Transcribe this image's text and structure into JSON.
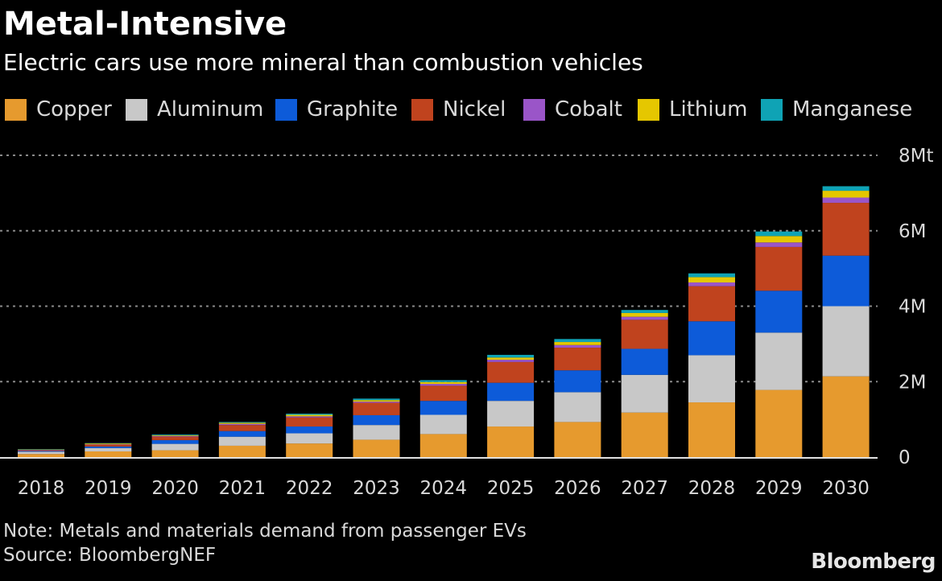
{
  "title": "Metal-Intensive",
  "subtitle": "Electric cars use more mineral than combustion vehicles",
  "note": "Note: Metals and materials demand from passenger EVs",
  "source": "Source: BloombergNEF",
  "brand": "Bloomberg",
  "chart_data": {
    "type": "bar",
    "stacked": true,
    "title": "Metal-Intensive",
    "subtitle": "Electric cars use more mineral than combustion vehicles",
    "xlabel": "",
    "ylabel": "",
    "ylim": [
      0,
      8
    ],
    "y_unit": "million tonnes",
    "y_ticks": [
      {
        "value": 0,
        "label": "0"
      },
      {
        "value": 2,
        "label": "2M"
      },
      {
        "value": 4,
        "label": "4M"
      },
      {
        "value": 6,
        "label": "6M"
      },
      {
        "value": 8,
        "label": "8Mt"
      }
    ],
    "grid": true,
    "legend_position": "top",
    "categories": [
      "2018",
      "2019",
      "2020",
      "2021",
      "2022",
      "2023",
      "2024",
      "2025",
      "2026",
      "2027",
      "2028",
      "2029",
      "2030"
    ],
    "series": [
      {
        "name": "Copper",
        "color": "#E69A2E",
        "values": [
          0.08,
          0.15,
          0.18,
          0.3,
          0.36,
          0.46,
          0.61,
          0.81,
          0.93,
          1.18,
          1.45,
          1.78,
          2.14
        ]
      },
      {
        "name": "Aluminum",
        "color": "#C8C8C8",
        "values": [
          0.06,
          0.09,
          0.17,
          0.24,
          0.27,
          0.39,
          0.51,
          0.68,
          0.79,
          1.0,
          1.25,
          1.52,
          1.86
        ]
      },
      {
        "name": "Graphite",
        "color": "#0D5BD9",
        "values": [
          0.02,
          0.04,
          0.1,
          0.15,
          0.18,
          0.26,
          0.37,
          0.48,
          0.58,
          0.69,
          0.9,
          1.11,
          1.34
        ]
      },
      {
        "name": "Nickel",
        "color": "#C0431E",
        "values": [
          0.02,
          0.05,
          0.09,
          0.16,
          0.24,
          0.33,
          0.4,
          0.55,
          0.6,
          0.77,
          0.93,
          1.16,
          1.4
        ]
      },
      {
        "name": "Cobalt",
        "color": "#9A55C8",
        "values": [
          0.01,
          0.01,
          0.02,
          0.03,
          0.03,
          0.03,
          0.05,
          0.06,
          0.07,
          0.08,
          0.1,
          0.12,
          0.14
        ]
      },
      {
        "name": "Lithium",
        "color": "#E5C700",
        "values": [
          0.01,
          0.02,
          0.02,
          0.03,
          0.04,
          0.04,
          0.05,
          0.06,
          0.08,
          0.1,
          0.14,
          0.17,
          0.18
        ]
      },
      {
        "name": "Manganese",
        "color": "#0FA3B5",
        "values": [
          0.01,
          0.01,
          0.02,
          0.02,
          0.03,
          0.04,
          0.05,
          0.07,
          0.08,
          0.08,
          0.1,
          0.12,
          0.12
        ]
      }
    ]
  }
}
